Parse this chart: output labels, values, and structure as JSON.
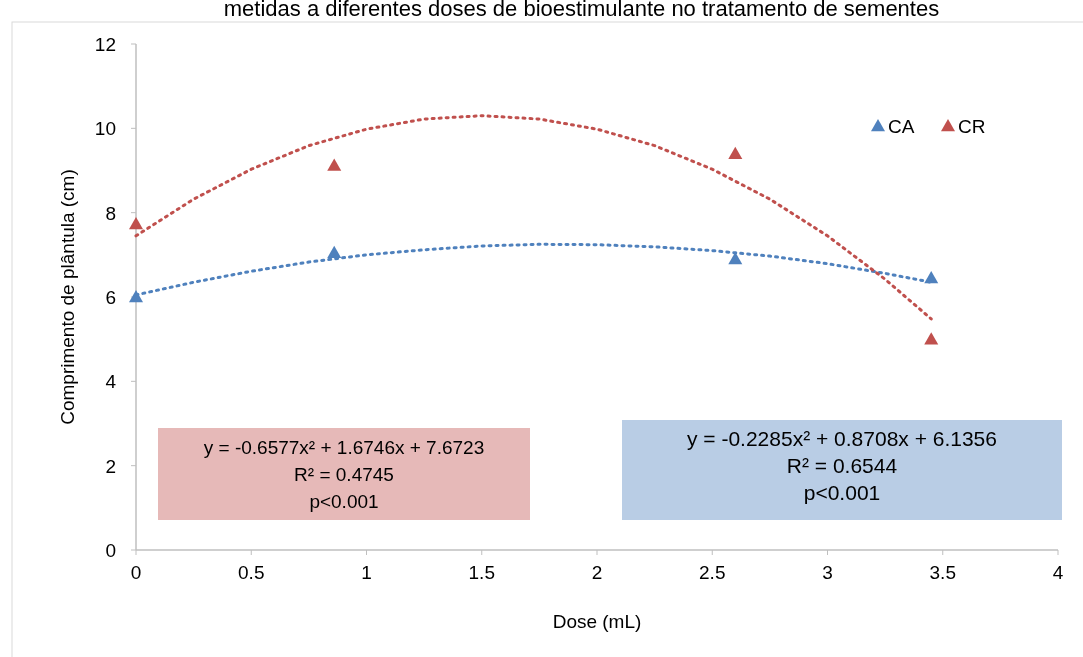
{
  "chart_data": {
    "type": "scatter",
    "title": "metidas a diferentes doses de bioestimulante no tratamento de sementes",
    "xlabel": "Dose (mL)",
    "ylabel": "Comprimento de plântula (cm)",
    "xlim": [
      0,
      4
    ],
    "xticks": [
      0,
      0.5,
      1,
      1.5,
      2,
      2.5,
      3,
      3.5,
      4
    ],
    "ylim": [
      0,
      12
    ],
    "yticks": [
      0,
      2,
      4,
      6,
      8,
      10,
      12
    ],
    "grid": false,
    "legend": "top right",
    "series": [
      {
        "name": "CA",
        "marker": "triangle",
        "color": "#4f81bd",
        "x": [
          0,
          0.86,
          2.6,
          3.45
        ],
        "values": [
          6.0,
          7.05,
          6.9,
          6.45
        ]
      },
      {
        "name": "CR",
        "marker": "triangle",
        "color": "#c0504d",
        "x": [
          0,
          0.86,
          2.6,
          3.45
        ],
        "values": [
          7.73,
          9.12,
          9.4,
          5.0
        ]
      },
      {
        "type": "line",
        "marker": "none",
        "line_style": "dotted",
        "color": "#4f81bd",
        "x": [
          0,
          0.25,
          0.5,
          0.75,
          1,
          1.25,
          1.5,
          1.75,
          2,
          2.25,
          2.5,
          2.75,
          3,
          3.25,
          3.45
        ],
        "values": [
          6.05,
          6.35,
          6.61,
          6.83,
          7.0,
          7.12,
          7.21,
          7.25,
          7.24,
          7.19,
          7.1,
          6.97,
          6.79,
          6.56,
          6.35
        ]
      },
      {
        "type": "line",
        "marker": "none",
        "line_style": "dotted",
        "color": "#c0504d",
        "x": [
          0,
          0.25,
          0.5,
          0.75,
          1,
          1.25,
          1.5,
          1.75,
          2,
          2.25,
          2.5,
          2.75,
          3,
          3.25,
          3.45
        ],
        "values": [
          7.45,
          8.32,
          9.03,
          9.59,
          9.98,
          10.22,
          10.3,
          10.22,
          9.98,
          9.59,
          9.03,
          8.32,
          7.45,
          6.42,
          5.48
        ]
      }
    ],
    "annotations": [
      "y = -0.6577x² + 1.6746x + 7.6723\nR² = 0.4745\np<0.001",
      "y = -0.2285x² + 0.8708x + 6.1356\nR² = 0.6544\np<0.001"
    ]
  }
}
